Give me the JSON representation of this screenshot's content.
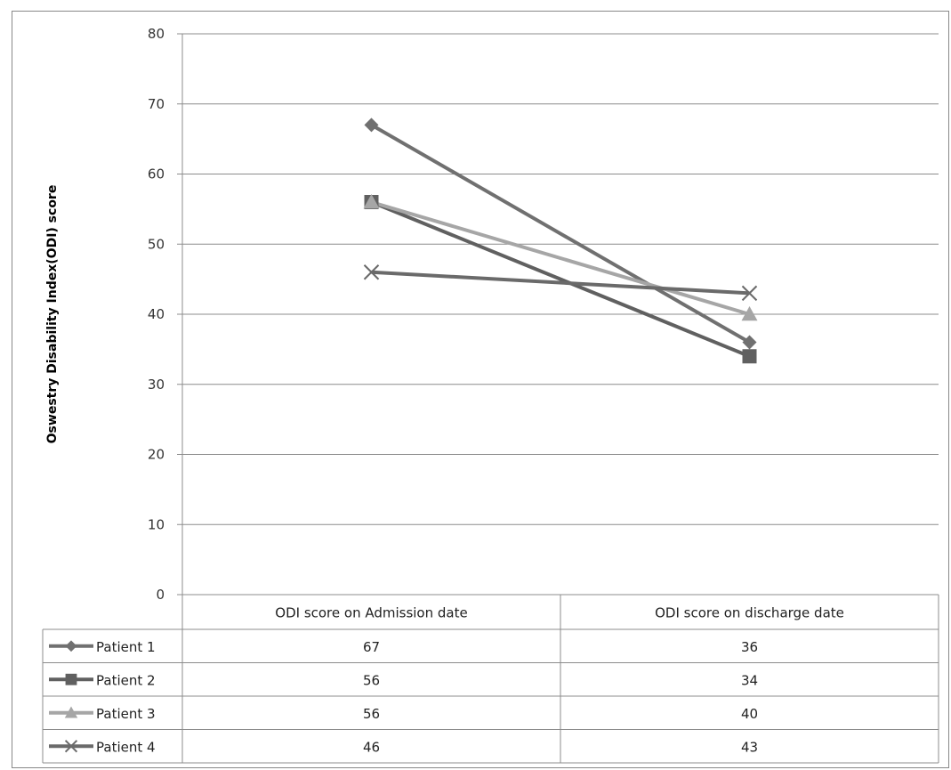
{
  "chart_data": {
    "type": "line",
    "title": "",
    "xlabel": "",
    "ylabel": "Oswestry Disability Index(ODI) score",
    "ylim": [
      0,
      80
    ],
    "yticks": [
      0,
      10,
      20,
      30,
      40,
      50,
      60,
      70,
      80
    ],
    "grid": true,
    "legend": "data-table",
    "categories": [
      "ODI score on Admission date",
      "ODI score on discharge date"
    ],
    "series": [
      {
        "name": "Patient 1",
        "values": [
          67,
          36
        ],
        "marker": "diamond",
        "color": "#707070"
      },
      {
        "name": "Patient 2",
        "values": [
          56,
          34
        ],
        "marker": "square",
        "color": "#606060"
      },
      {
        "name": "Patient 3",
        "values": [
          56,
          40
        ],
        "marker": "triangle",
        "color": "#a6a6a6"
      },
      {
        "name": "Patient 4",
        "values": [
          46,
          43
        ],
        "marker": "x",
        "color": "#6a6a6a"
      }
    ]
  }
}
